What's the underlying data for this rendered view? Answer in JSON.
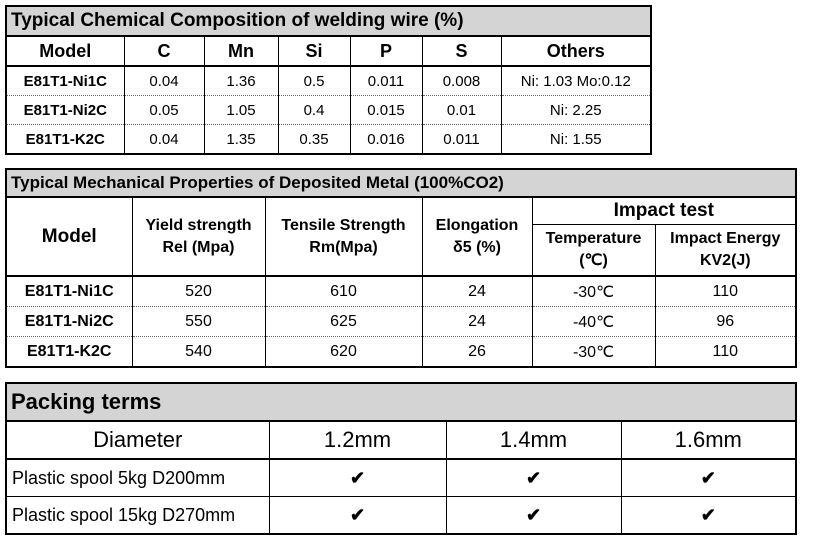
{
  "chemical": {
    "title": "Typical Chemical Composition of welding wire (%)",
    "headers": [
      "Model",
      "C",
      "Mn",
      "Si",
      "P",
      "S",
      "Others"
    ],
    "rows": [
      [
        "E81T1-Ni1C",
        "0.04",
        "1.36",
        "0.5",
        "0.011",
        "0.008",
        "Ni: 1.03 Mo:0.12"
      ],
      [
        "E81T1-Ni2C",
        "0.05",
        "1.05",
        "0.4",
        "0.015",
        "0.01",
        "Ni: 2.25"
      ],
      [
        "E81T1-K2C",
        "0.04",
        "1.35",
        "0.35",
        "0.016",
        "0.011",
        "Ni: 1.55"
      ]
    ]
  },
  "mechanical": {
    "title": "Typical Mechanical Properties of Deposited Metal (100%CO2)",
    "headers": {
      "model": "Model",
      "yield_line1": "Yield strength",
      "yield_line2": "Rel (Mpa)",
      "tensile_line1": "Tensile Strength",
      "tensile_line2": "Rm(Mpa)",
      "elong_line1": "Elongation",
      "elong_line2": "δ5 (%)",
      "impact": "Impact test",
      "temp_line1": "Temperature",
      "temp_line2": "(℃)",
      "energy_line1": "Impact Energy",
      "energy_line2": "KV2(J)"
    },
    "rows": [
      [
        "E81T1-Ni1C",
        "520",
        "610",
        "24",
        "-30℃",
        "110"
      ],
      [
        "E81T1-Ni2C",
        "550",
        "625",
        "24",
        "-40℃",
        "96"
      ],
      [
        "E81T1-K2C",
        "540",
        "620",
        "26",
        "-30℃",
        "110"
      ]
    ]
  },
  "packing": {
    "title": "Packing terms",
    "headers": [
      "Diameter",
      "1.2mm",
      "1.4mm",
      "1.6mm"
    ],
    "rows": [
      [
        "Plastic spool 5kg D200mm",
        "✔",
        "✔",
        "✔"
      ],
      [
        "Plastic spool 15kg D270mm",
        "✔",
        "✔",
        "✔"
      ]
    ]
  }
}
